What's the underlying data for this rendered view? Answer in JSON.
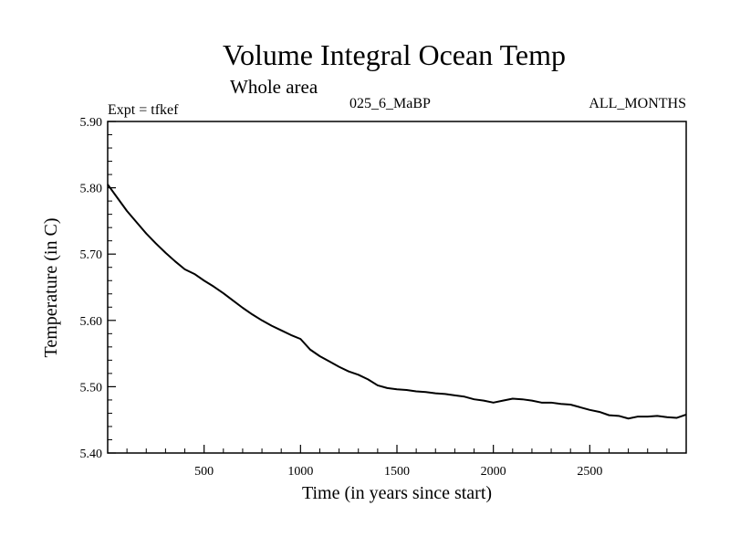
{
  "chart_data": {
    "type": "line",
    "title": "Volume Integral Ocean Temp",
    "subtitle": "Whole area",
    "experiment_label": "Expt = tfkef",
    "run_label": "025_6_MaBP",
    "period_label": "ALL_MONTHS",
    "xlabel": "Time (in years since start)",
    "ylabel": "Temperature (in C)",
    "xlim": [
      0,
      3000
    ],
    "ylim": [
      5.4,
      5.9
    ],
    "xticks": [
      "500",
      "1000",
      "1500",
      "2000",
      "2500"
    ],
    "yticks": [
      "5.40",
      "5.50",
      "5.60",
      "5.70",
      "5.80",
      "5.90"
    ],
    "grid": false,
    "legend": "none",
    "line_color": "#000000",
    "series": [
      {
        "x": [
          0,
          50,
          100,
          150,
          200,
          250,
          300,
          350,
          400,
          450,
          500,
          550,
          600,
          650,
          700,
          750,
          800,
          850,
          900,
          950,
          1000,
          1050,
          1100,
          1150,
          1200,
          1250,
          1300,
          1350,
          1400,
          1450,
          1500,
          1550,
          1600,
          1650,
          1700,
          1750,
          1800,
          1850,
          1900,
          1950,
          2000,
          2050,
          2100,
          2150,
          2200,
          2250,
          2300,
          2350,
          2400,
          2450,
          2500,
          2550,
          2600,
          2650,
          2700,
          2750,
          2800,
          2850,
          2900,
          2950,
          3000
        ],
        "y": [
          5.805,
          5.785,
          5.765,
          5.748,
          5.731,
          5.716,
          5.702,
          5.689,
          5.677,
          5.67,
          5.66,
          5.651,
          5.641,
          5.63,
          5.619,
          5.609,
          5.6,
          5.592,
          5.585,
          5.578,
          5.572,
          5.556,
          5.546,
          5.538,
          5.53,
          5.523,
          5.518,
          5.511,
          5.502,
          5.498,
          5.496,
          5.495,
          5.493,
          5.492,
          5.49,
          5.489,
          5.487,
          5.485,
          5.481,
          5.479,
          5.476,
          5.479,
          5.482,
          5.481,
          5.479,
          5.476,
          5.476,
          5.474,
          5.473,
          5.469,
          5.465,
          5.462,
          5.457,
          5.456,
          5.452,
          5.455,
          5.455,
          5.456,
          5.454,
          5.453,
          5.458
        ]
      }
    ]
  }
}
